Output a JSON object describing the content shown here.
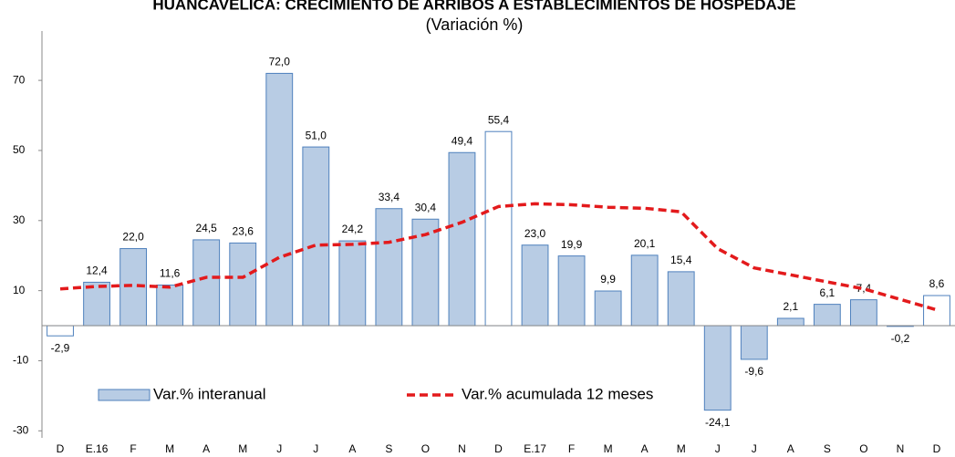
{
  "chart_data": {
    "type": "bar",
    "title": "HUANCAVELICA: CRECIMIENTO DE ARRIBOS A ESTABLECIMIENTOS DE HOSPEDAJE",
    "subtitle": "(Variación %)",
    "categories": [
      "D",
      "E.16",
      "F",
      "M",
      "A",
      "M",
      "J",
      "J",
      "A",
      "S",
      "O",
      "N",
      "D",
      "E.17",
      "F",
      "M",
      "A",
      "M",
      "J",
      "J",
      "A",
      "S",
      "O",
      "N",
      "D"
    ],
    "series": [
      {
        "name": "Var.% interanual",
        "type": "bar",
        "color": "#b8cce4",
        "border": "#4f81bd",
        "fills": [
          "#ffffff",
          "#b8cce4",
          "#b8cce4",
          "#b8cce4",
          "#b8cce4",
          "#b8cce4",
          "#b8cce4",
          "#b8cce4",
          "#b8cce4",
          "#b8cce4",
          "#b8cce4",
          "#b8cce4",
          "#ffffff",
          "#b8cce4",
          "#b8cce4",
          "#b8cce4",
          "#b8cce4",
          "#b8cce4",
          "#b8cce4",
          "#b8cce4",
          "#b8cce4",
          "#b8cce4",
          "#b8cce4",
          "#b8cce4",
          "#ffffff"
        ],
        "values": [
          -2.9,
          12.4,
          22.0,
          11.6,
          24.5,
          23.6,
          72.0,
          51.0,
          24.2,
          33.4,
          30.4,
          49.4,
          55.4,
          23.0,
          19.9,
          9.9,
          20.1,
          15.4,
          -24.1,
          -9.6,
          2.1,
          6.1,
          7.4,
          -0.2,
          8.6
        ],
        "value_labels": [
          "-2,9",
          "12,4",
          "22,0",
          "11,6",
          "24,5",
          "23,6",
          "72,0",
          "51,0",
          "24,2",
          "33,4",
          "30,4",
          "49,4",
          "55,4",
          "23,0",
          "19,9",
          "9,9",
          "20,1",
          "15,4",
          "-24,1",
          "-9,6",
          "2,1",
          "6,1",
          "7,4",
          "-0,2",
          "8,6"
        ]
      },
      {
        "name": "Var.% acumulada 12 meses",
        "type": "line",
        "color": "#e31a1c",
        "dashed": true,
        "values": [
          10.5,
          11.2,
          11.5,
          11,
          13.8,
          13.8,
          19.5,
          23,
          23.2,
          23.8,
          26,
          29.5,
          34,
          34.8,
          34.5,
          33.8,
          33.5,
          32.5,
          22,
          16.5,
          14.5,
          12.5,
          10.5,
          7.5,
          4.5
        ]
      }
    ],
    "ylim": [
      -32,
      82
    ],
    "yticks": [
      -30,
      -10,
      10,
      30,
      50,
      70
    ],
    "grid": false,
    "legend": "lower left"
  }
}
